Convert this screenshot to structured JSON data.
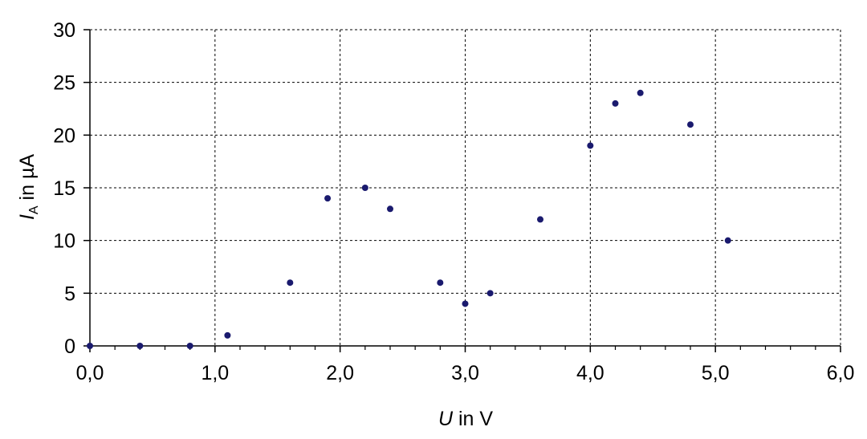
{
  "chart_data": {
    "type": "scatter",
    "title": "",
    "xlabel": {
      "symbol": "U",
      "unit": " in V"
    },
    "ylabel": {
      "symbol": "I",
      "subscript": "A",
      "unit": " in µA"
    },
    "xlim": [
      0,
      6
    ],
    "ylim": [
      0,
      30
    ],
    "xticks": [
      0,
      1,
      2,
      3,
      4,
      5,
      6
    ],
    "xtick_labels": [
      "0,0",
      "1,0",
      "2,0",
      "3,0",
      "4,0",
      "5,0",
      "6,0"
    ],
    "yticks": [
      0,
      5,
      10,
      15,
      20,
      25,
      30
    ],
    "ytick_labels": [
      "0",
      "5",
      "10",
      "15",
      "20",
      "25",
      "30"
    ],
    "x_minor_step": 0.2,
    "grid": true,
    "grid_style": "dotted",
    "marker_color": "#1a1a6e",
    "series": [
      {
        "x": [
          0.0,
          0.4,
          0.8,
          1.1,
          1.6,
          1.9,
          2.2,
          2.4,
          2.8,
          3.0,
          3.2,
          3.6,
          4.0,
          4.2,
          4.4,
          4.8,
          5.1
        ],
        "y": [
          0,
          0,
          0,
          1,
          6,
          14,
          15,
          13,
          6,
          4,
          5,
          12,
          19,
          23,
          24,
          21,
          10
        ]
      }
    ]
  }
}
